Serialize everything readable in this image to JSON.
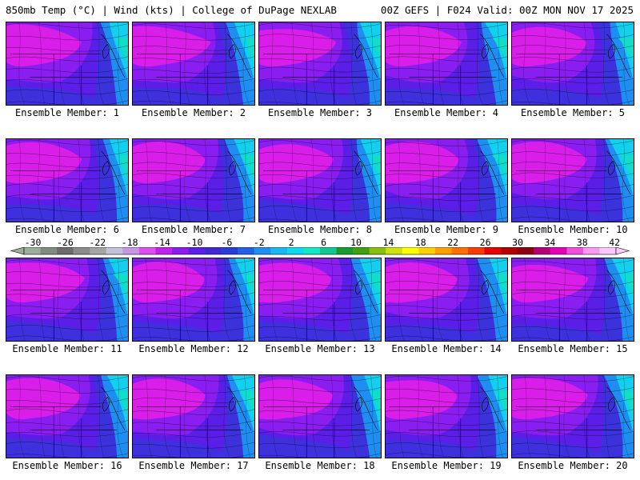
{
  "header": {
    "left": "850mb Temp (°C) | Wind (kts) | College of DuPage NEXLAB",
    "right": "00Z GEFS | F024 Valid: 00Z MON NOV 17 2025"
  },
  "panels": [
    {
      "label": "Ensemble Member: 1"
    },
    {
      "label": "Ensemble Member: 2"
    },
    {
      "label": "Ensemble Member: 3"
    },
    {
      "label": "Ensemble Member: 4"
    },
    {
      "label": "Ensemble Member: 5"
    },
    {
      "label": "Ensemble Member: 6"
    },
    {
      "label": "Ensemble Member: 7"
    },
    {
      "label": "Ensemble Member: 8"
    },
    {
      "label": "Ensemble Member: 9"
    },
    {
      "label": "Ensemble Member: 10"
    },
    {
      "label": "Ensemble Member: 11"
    },
    {
      "label": "Ensemble Member: 12"
    },
    {
      "label": "Ensemble Member: 13"
    },
    {
      "label": "Ensemble Member: 14"
    },
    {
      "label": "Ensemble Member: 15"
    },
    {
      "label": "Ensemble Member: 16"
    },
    {
      "label": "Ensemble Member: 17"
    },
    {
      "label": "Ensemble Member: 18"
    },
    {
      "label": "Ensemble Member: 19"
    },
    {
      "label": "Ensemble Member: 20"
    }
  ],
  "colorbar": {
    "ticks": [
      "-30",
      "-26",
      "-22",
      "-18",
      "-14",
      "-10",
      "-6",
      "-2",
      "2",
      "6",
      "10",
      "14",
      "18",
      "22",
      "26",
      "30",
      "34",
      "38",
      "42"
    ],
    "colors": [
      "#9aae9a",
      "#7f8c7f",
      "#6c6c6c",
      "#8c8c8c",
      "#a5a5a5",
      "#c2c2dc",
      "#c896e6",
      "#e04ef0",
      "#c020f0",
      "#8a1ef0",
      "#5a1ee6",
      "#4028d2",
      "#2a3cd8",
      "#2460e6",
      "#1e8ef0",
      "#18b8f0",
      "#10d8f0",
      "#10e8c8",
      "#10c890",
      "#189c30",
      "#40a010",
      "#88c010",
      "#d0e010",
      "#ffff00",
      "#ffd000",
      "#ffa000",
      "#ff7000",
      "#ff3a00",
      "#e60000",
      "#b40000",
      "#8c0010",
      "#b40078",
      "#e600b4",
      "#f050e0",
      "#f89af0",
      "#ffc8ff"
    ]
  },
  "map_colors": {
    "magenta": "#d81ee8",
    "purple": "#8a1ef0",
    "indigo": "#5a1ee6",
    "blue": "#3c32dc",
    "lightblue": "#1e8ef0",
    "cyan": "#12d0ee",
    "teal": "#10e0c0"
  }
}
